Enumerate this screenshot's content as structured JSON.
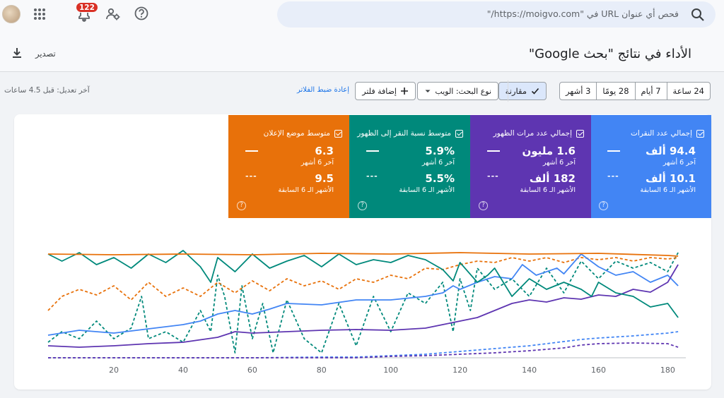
{
  "header": {
    "search_placeholder": "فحص أي عنوان URL في \"https://moigvo.com/\"",
    "notification_count": "122"
  },
  "page": {
    "title": "الأداء في نتائج \"بحث Google\"",
    "export_label": "تصدير"
  },
  "toolbar": {
    "ranges": [
      "24 ساعة",
      "7 أيام",
      "28 يومًا",
      "3 أشهر"
    ],
    "compare_label": "مقارنة",
    "search_type_label": "نوع البحث: الويب",
    "add_filter_label": "إضافة فلتر",
    "reset_filters_label": "إعادة ضبط الفلاتر",
    "last_updated": "آخر تعديل: قبل 4.5 ساعات"
  },
  "metrics": [
    {
      "title": "إجمالي عدد النقرات",
      "value": "94.4 ألف",
      "period": "آخر 6 أشهر",
      "prev_value": "10.1 ألف",
      "prev_period": "الأشهر الـ 6 السابقة",
      "color": "#4285f4"
    },
    {
      "title": "إجمالي عدد مرات الظهور",
      "value": "1.6 مليون",
      "period": "آخر 6 أشهر",
      "prev_value": "182 ألف",
      "prev_period": "الأشهر الـ 6 السابقة",
      "color": "#5e35b1"
    },
    {
      "title": "متوسط نسبة النقر إلى الظهور",
      "value": "5.9%",
      "period": "آخر 6 أشهر",
      "prev_value": "5.5%",
      "prev_period": "الأشهر الـ 6 السابقة",
      "color": "#00897b"
    },
    {
      "title": "متوسط موضع الإعلان",
      "value": "6.3",
      "period": "آخر 6 أشهر",
      "prev_value": "9.5",
      "prev_period": "الأشهر الـ 6 السابقة",
      "color": "#e8710a"
    }
  ],
  "chart_data": {
    "type": "line",
    "x_ticks": [
      "20",
      "40",
      "60",
      "80",
      "100",
      "120",
      "140",
      "160",
      "180"
    ],
    "xlim": [
      1,
      184
    ],
    "grid": false,
    "series": [
      {
        "name": "إجمالي عدد النقرات",
        "style": "solid",
        "color": "#4285f4",
        "keypoints": [
          [
            1,
            475
          ],
          [
            10,
            468
          ],
          [
            20,
            472
          ],
          [
            30,
            466
          ],
          [
            40,
            460
          ],
          [
            45,
            455
          ],
          [
            50,
            445
          ],
          [
            55,
            440
          ],
          [
            60,
            445
          ],
          [
            65,
            438
          ],
          [
            70,
            430
          ],
          [
            80,
            432
          ],
          [
            90,
            425
          ],
          [
            100,
            425
          ],
          [
            110,
            420
          ],
          [
            115,
            415
          ],
          [
            118,
            405
          ],
          [
            120,
            410
          ],
          [
            125,
            400
          ],
          [
            130,
            392
          ],
          [
            135,
            395
          ],
          [
            138,
            375
          ],
          [
            142,
            390
          ],
          [
            148,
            380
          ],
          [
            150,
            388
          ],
          [
            155,
            360
          ],
          [
            160,
            378
          ],
          [
            165,
            390
          ],
          [
            170,
            385
          ],
          [
            175,
            400
          ],
          [
            180,
            390
          ],
          [
            183,
            405
          ]
        ]
      },
      {
        "name": "إجمالي عدد النقرات",
        "style": "dashed",
        "color": "#4285f4",
        "keypoints": [
          [
            1,
            507
          ],
          [
            20,
            507
          ],
          [
            40,
            507
          ],
          [
            60,
            507
          ],
          [
            80,
            506
          ],
          [
            90,
            506
          ],
          [
            100,
            504
          ],
          [
            105,
            503
          ],
          [
            110,
            502
          ],
          [
            120,
            498
          ],
          [
            130,
            494
          ],
          [
            140,
            490
          ],
          [
            150,
            484
          ],
          [
            155,
            481
          ],
          [
            160,
            479
          ],
          [
            170,
            476
          ],
          [
            180,
            472
          ],
          [
            183,
            470
          ]
        ]
      },
      {
        "name": "إجمالي عدد مرات الظهور",
        "style": "solid",
        "color": "#5e35b1",
        "keypoints": [
          [
            1,
            490
          ],
          [
            10,
            492
          ],
          [
            20,
            490
          ],
          [
            30,
            487
          ],
          [
            40,
            485
          ],
          [
            50,
            478
          ],
          [
            55,
            470
          ],
          [
            60,
            472
          ],
          [
            70,
            470
          ],
          [
            80,
            468
          ],
          [
            90,
            467
          ],
          [
            100,
            468
          ],
          [
            110,
            465
          ],
          [
            115,
            460
          ],
          [
            120,
            455
          ],
          [
            125,
            450
          ],
          [
            130,
            440
          ],
          [
            135,
            430
          ],
          [
            140,
            425
          ],
          [
            145,
            428
          ],
          [
            150,
            422
          ],
          [
            155,
            424
          ],
          [
            160,
            418
          ],
          [
            165,
            420
          ],
          [
            170,
            410
          ],
          [
            175,
            414
          ],
          [
            180,
            400
          ],
          [
            183,
            375
          ]
        ]
      },
      {
        "name": "إجمالي عدد مرات الظهور",
        "style": "dashed",
        "color": "#5e35b1",
        "keypoints": [
          [
            1,
            507
          ],
          [
            20,
            507
          ],
          [
            40,
            507
          ],
          [
            60,
            507
          ],
          [
            80,
            507
          ],
          [
            90,
            507
          ],
          [
            100,
            505
          ],
          [
            110,
            504
          ],
          [
            120,
            502
          ],
          [
            130,
            500
          ],
          [
            140,
            497
          ],
          [
            150,
            493
          ],
          [
            155,
            489
          ],
          [
            160,
            487
          ],
          [
            170,
            486
          ],
          [
            180,
            487
          ],
          [
            183,
            492
          ]
        ]
      },
      {
        "name": "متوسط نسبة النقر إلى الظهور",
        "style": "solid",
        "color": "#00897b",
        "keypoints": [
          [
            1,
            360
          ],
          [
            5,
            370
          ],
          [
            10,
            358
          ],
          [
            15,
            375
          ],
          [
            20,
            365
          ],
          [
            25,
            380
          ],
          [
            30,
            360
          ],
          [
            35,
            372
          ],
          [
            40,
            355
          ],
          [
            45,
            378
          ],
          [
            48,
            400
          ],
          [
            50,
            365
          ],
          [
            55,
            385
          ],
          [
            60,
            360
          ],
          [
            65,
            380
          ],
          [
            70,
            370
          ],
          [
            75,
            362
          ],
          [
            80,
            378
          ],
          [
            85,
            360
          ],
          [
            90,
            375
          ],
          [
            95,
            368
          ],
          [
            100,
            372
          ],
          [
            105,
            362
          ],
          [
            110,
            368
          ],
          [
            115,
            382
          ],
          [
            118,
            398
          ],
          [
            120,
            372
          ],
          [
            125,
            400
          ],
          [
            128,
            390
          ],
          [
            130,
            380
          ],
          [
            135,
            420
          ],
          [
            140,
            395
          ],
          [
            145,
            410
          ],
          [
            150,
            400
          ],
          [
            155,
            410
          ],
          [
            158,
            420
          ],
          [
            160,
            400
          ],
          [
            165,
            415
          ],
          [
            170,
            420
          ],
          [
            175,
            435
          ],
          [
            180,
            430
          ],
          [
            183,
            450
          ]
        ]
      },
      {
        "name": "متوسط نسبة النقر إلى الظهور",
        "style": "dashed",
        "color": "#00897b",
        "keypoints": [
          [
            1,
            485
          ],
          [
            5,
            470
          ],
          [
            10,
            480
          ],
          [
            15,
            455
          ],
          [
            20,
            480
          ],
          [
            25,
            465
          ],
          [
            28,
            420
          ],
          [
            30,
            480
          ],
          [
            35,
            470
          ],
          [
            40,
            485
          ],
          [
            45,
            440
          ],
          [
            48,
            470
          ],
          [
            50,
            390
          ],
          [
            52,
            420
          ],
          [
            55,
            500
          ],
          [
            57,
            405
          ],
          [
            60,
            480
          ],
          [
            63,
            430
          ],
          [
            66,
            500
          ],
          [
            70,
            425
          ],
          [
            75,
            480
          ],
          [
            80,
            500
          ],
          [
            85,
            430
          ],
          [
            90,
            490
          ],
          [
            95,
            420
          ],
          [
            100,
            470
          ],
          [
            105,
            415
          ],
          [
            110,
            430
          ],
          [
            115,
            400
          ],
          [
            118,
            470
          ],
          [
            120,
            395
          ],
          [
            123,
            440
          ],
          [
            125,
            380
          ],
          [
            130,
            410
          ],
          [
            135,
            395
          ],
          [
            140,
            420
          ],
          [
            145,
            380
          ],
          [
            150,
            415
          ],
          [
            155,
            370
          ],
          [
            160,
            395
          ],
          [
            165,
            370
          ],
          [
            170,
            380
          ],
          [
            175,
            372
          ],
          [
            180,
            385
          ],
          [
            183,
            358
          ]
        ]
      },
      {
        "name": "متوسط موضع الإعلان",
        "style": "solid",
        "color": "#e8710a",
        "keypoints": [
          [
            1,
            360
          ],
          [
            20,
            361
          ],
          [
            40,
            360
          ],
          [
            60,
            361
          ],
          [
            80,
            359
          ],
          [
            100,
            360
          ],
          [
            120,
            358
          ],
          [
            140,
            360
          ],
          [
            160,
            359
          ],
          [
            180,
            362
          ],
          [
            183,
            363
          ]
        ]
      },
      {
        "name": "متوسط موضع الإعلان",
        "style": "dashed",
        "color": "#e8710a",
        "keypoints": [
          [
            1,
            440
          ],
          [
            5,
            420
          ],
          [
            10,
            410
          ],
          [
            15,
            418
          ],
          [
            20,
            405
          ],
          [
            25,
            425
          ],
          [
            30,
            400
          ],
          [
            35,
            420
          ],
          [
            40,
            408
          ],
          [
            45,
            420
          ],
          [
            50,
            400
          ],
          [
            55,
            415
          ],
          [
            60,
            398
          ],
          [
            65,
            412
          ],
          [
            70,
            395
          ],
          [
            75,
            405
          ],
          [
            80,
            398
          ],
          [
            85,
            410
          ],
          [
            90,
            395
          ],
          [
            95,
            400
          ],
          [
            100,
            390
          ],
          [
            105,
            395
          ],
          [
            110,
            380
          ],
          [
            115,
            382
          ],
          [
            120,
            375
          ],
          [
            125,
            370
          ],
          [
            130,
            372
          ],
          [
            135,
            365
          ],
          [
            140,
            370
          ],
          [
            145,
            365
          ],
          [
            150,
            372
          ],
          [
            155,
            365
          ],
          [
            160,
            368
          ],
          [
            165,
            365
          ],
          [
            170,
            370
          ],
          [
            175,
            365
          ],
          [
            180,
            367
          ],
          [
            183,
            365
          ]
        ]
      }
    ]
  }
}
